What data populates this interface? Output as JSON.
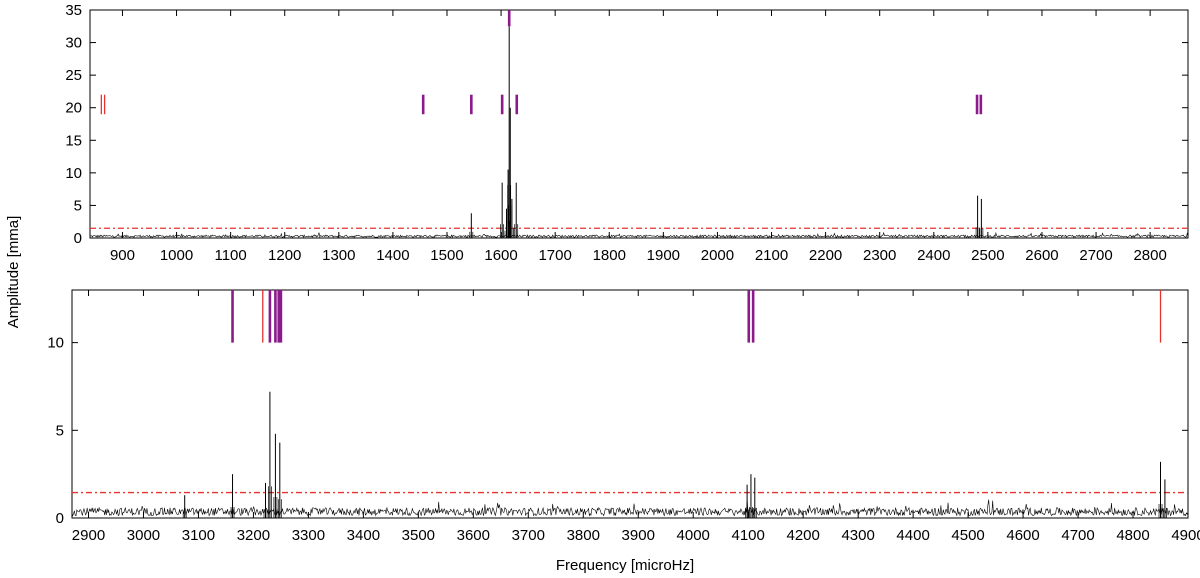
{
  "chart_data": [
    {
      "type": "line",
      "panel": "top",
      "xlim": [
        840,
        2870
      ],
      "ylim": [
        0,
        35
      ],
      "xticks": [
        900,
        1000,
        1100,
        1200,
        1300,
        1400,
        1500,
        1600,
        1700,
        1800,
        1900,
        2000,
        2100,
        2200,
        2300,
        2400,
        2500,
        2600,
        2700,
        2800
      ],
      "yticks": [
        0,
        5,
        10,
        15,
        20,
        25,
        30,
        35
      ],
      "threshold": 1.5,
      "peaks": [
        {
          "x": 1545,
          "y": 3.8
        },
        {
          "x": 1602,
          "y": 8.5
        },
        {
          "x": 1610,
          "y": 4.5
        },
        {
          "x": 1613,
          "y": 10.5
        },
        {
          "x": 1615,
          "y": 32.5
        },
        {
          "x": 1617,
          "y": 20.0
        },
        {
          "x": 1620,
          "y": 6.0
        },
        {
          "x": 1628,
          "y": 8.5
        },
        {
          "x": 2481,
          "y": 6.5
        },
        {
          "x": 2488,
          "y": 6.0
        }
      ],
      "markers": [
        {
          "x": 861,
          "y1": 19,
          "y2": 22,
          "color": "#e8322d"
        },
        {
          "x": 867,
          "y1": 19,
          "y2": 22,
          "color": "#e8322d"
        },
        {
          "x": 1456,
          "y1": 19,
          "y2": 22,
          "color": "#8b1a8b"
        },
        {
          "x": 1545,
          "y1": 19,
          "y2": 22,
          "color": "#8b1a8b"
        },
        {
          "x": 1602,
          "y1": 19,
          "y2": 22,
          "color": "#8b1a8b"
        },
        {
          "x": 1615,
          "y1": 32.5,
          "y2": 35,
          "color": "#8b1a8b"
        },
        {
          "x": 1629,
          "y1": 19,
          "y2": 22,
          "color": "#8b1a8b"
        },
        {
          "x": 2480,
          "y1": 19,
          "y2": 22,
          "color": "#8b1a8b"
        },
        {
          "x": 2487,
          "y1": 19,
          "y2": 22,
          "color": "#8b1a8b"
        }
      ]
    },
    {
      "type": "line",
      "panel": "bottom",
      "xlim": [
        2870,
        4900
      ],
      "ylim": [
        0,
        13
      ],
      "xticks": [
        2900,
        3000,
        3100,
        3200,
        3300,
        3400,
        3500,
        3600,
        3700,
        3800,
        3900,
        4000,
        4100,
        4200,
        4300,
        4400,
        4500,
        4600,
        4700,
        4800,
        4900
      ],
      "yticks": [
        0,
        5,
        10
      ],
      "threshold": 1.45,
      "peaks": [
        {
          "x": 3075,
          "y": 1.3
        },
        {
          "x": 3162,
          "y": 2.5
        },
        {
          "x": 3222,
          "y": 2.0
        },
        {
          "x": 3230,
          "y": 7.2
        },
        {
          "x": 3240,
          "y": 4.8
        },
        {
          "x": 3248,
          "y": 4.3
        },
        {
          "x": 4098,
          "y": 1.9
        },
        {
          "x": 4105,
          "y": 2.5
        },
        {
          "x": 4112,
          "y": 2.3
        },
        {
          "x": 4850,
          "y": 3.2
        },
        {
          "x": 4858,
          "y": 2.2
        }
      ],
      "markers": [
        {
          "x": 3162,
          "y1": 10,
          "y2": 13,
          "color": "#8b1a8b"
        },
        {
          "x": 3217,
          "y1": 10,
          "y2": 13,
          "color": "#e8322d"
        },
        {
          "x": 3230,
          "y1": 10,
          "y2": 13,
          "color": "#8b1a8b"
        },
        {
          "x": 3240,
          "y1": 10,
          "y2": 13,
          "color": "#8b1a8b"
        },
        {
          "x": 3246,
          "y1": 10,
          "y2": 13,
          "color": "#8b1a8b"
        },
        {
          "x": 3250,
          "y1": 10,
          "y2": 13,
          "color": "#8b1a8b"
        },
        {
          "x": 4101,
          "y1": 10,
          "y2": 13,
          "color": "#8b1a8b"
        },
        {
          "x": 4109,
          "y1": 10,
          "y2": 13,
          "color": "#8b1a8b"
        },
        {
          "x": 4850,
          "y1": 10,
          "y2": 13,
          "color": "#e8322d"
        }
      ]
    }
  ],
  "labels": {
    "xlabel": "Frequency [microHz]",
    "ylabel": "Amplitude [mma]"
  },
  "colors": {
    "spectrum": "#000000",
    "threshold": "#e8322d",
    "marker_primary": "#8b1a8b",
    "marker_secondary": "#e8322d"
  }
}
